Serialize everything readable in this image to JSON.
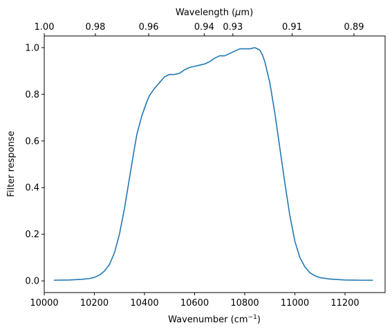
{
  "chart_data": {
    "type": "line",
    "title": "",
    "xlabel": {
      "main": "Wavenumber (cm",
      "superscript": "−1",
      "close": ")"
    },
    "ylabel": "Filter response",
    "top_xlabel": {
      "main": "Wavelength (",
      "greek": "μ",
      "unit": "m)"
    },
    "xlim": [
      10000,
      11360
    ],
    "ylim": [
      -0.05,
      1.05
    ],
    "xticks": [
      {
        "value": 10000,
        "label": "10000"
      },
      {
        "value": 10200,
        "label": "10200"
      },
      {
        "value": 10400,
        "label": "10400"
      },
      {
        "value": 10600,
        "label": "10600"
      },
      {
        "value": 10800,
        "label": "10800"
      },
      {
        "value": 11000,
        "label": "11000"
      },
      {
        "value": 11200,
        "label": "11200"
      }
    ],
    "yticks": [
      {
        "value": 0.0,
        "label": "0.0"
      },
      {
        "value": 0.2,
        "label": "0.2"
      },
      {
        "value": 0.4,
        "label": "0.4"
      },
      {
        "value": 0.6,
        "label": "0.6"
      },
      {
        "value": 0.8,
        "label": "0.8"
      },
      {
        "value": 1.0,
        "label": "1.0"
      }
    ],
    "top_ticks": [
      {
        "wavelength": 1.0,
        "label": "1.00"
      },
      {
        "wavelength": 0.98,
        "label": "0.98"
      },
      {
        "wavelength": 0.96,
        "label": "0.96"
      },
      {
        "wavelength": 0.94,
        "label": "0.94"
      },
      {
        "wavelength": 0.93,
        "label": "0.93"
      },
      {
        "wavelength": 0.91,
        "label": "0.91"
      },
      {
        "wavelength": 0.89,
        "label": "0.89"
      }
    ],
    "series": [
      {
        "color": "#1f77b4",
        "x": [
          10040,
          10100,
          10150,
          10180,
          10200,
          10220,
          10240,
          10260,
          10280,
          10300,
          10320,
          10340,
          10360,
          10370,
          10380,
          10390,
          10400,
          10410,
          10420,
          10430,
          10440,
          10460,
          10480,
          10500,
          10520,
          10540,
          10560,
          10580,
          10600,
          10620,
          10640,
          10660,
          10680,
          10700,
          10720,
          10740,
          10760,
          10780,
          10800,
          10820,
          10840,
          10860,
          10870,
          10880,
          10900,
          10920,
          10940,
          10960,
          10980,
          11000,
          11020,
          11040,
          11060,
          11080,
          11100,
          11140,
          11200,
          11260,
          11310
        ],
        "y": [
          0.003,
          0.004,
          0.007,
          0.01,
          0.015,
          0.025,
          0.042,
          0.07,
          0.12,
          0.2,
          0.31,
          0.44,
          0.57,
          0.63,
          0.67,
          0.71,
          0.74,
          0.77,
          0.795,
          0.81,
          0.825,
          0.85,
          0.875,
          0.885,
          0.885,
          0.89,
          0.905,
          0.915,
          0.92,
          0.925,
          0.93,
          0.94,
          0.955,
          0.965,
          0.965,
          0.975,
          0.985,
          0.995,
          0.995,
          0.995,
          1.0,
          0.99,
          0.97,
          0.94,
          0.85,
          0.72,
          0.57,
          0.42,
          0.28,
          0.17,
          0.1,
          0.06,
          0.035,
          0.022,
          0.014,
          0.008,
          0.004,
          0.003,
          0.003
        ]
      }
    ],
    "grid": false
  }
}
